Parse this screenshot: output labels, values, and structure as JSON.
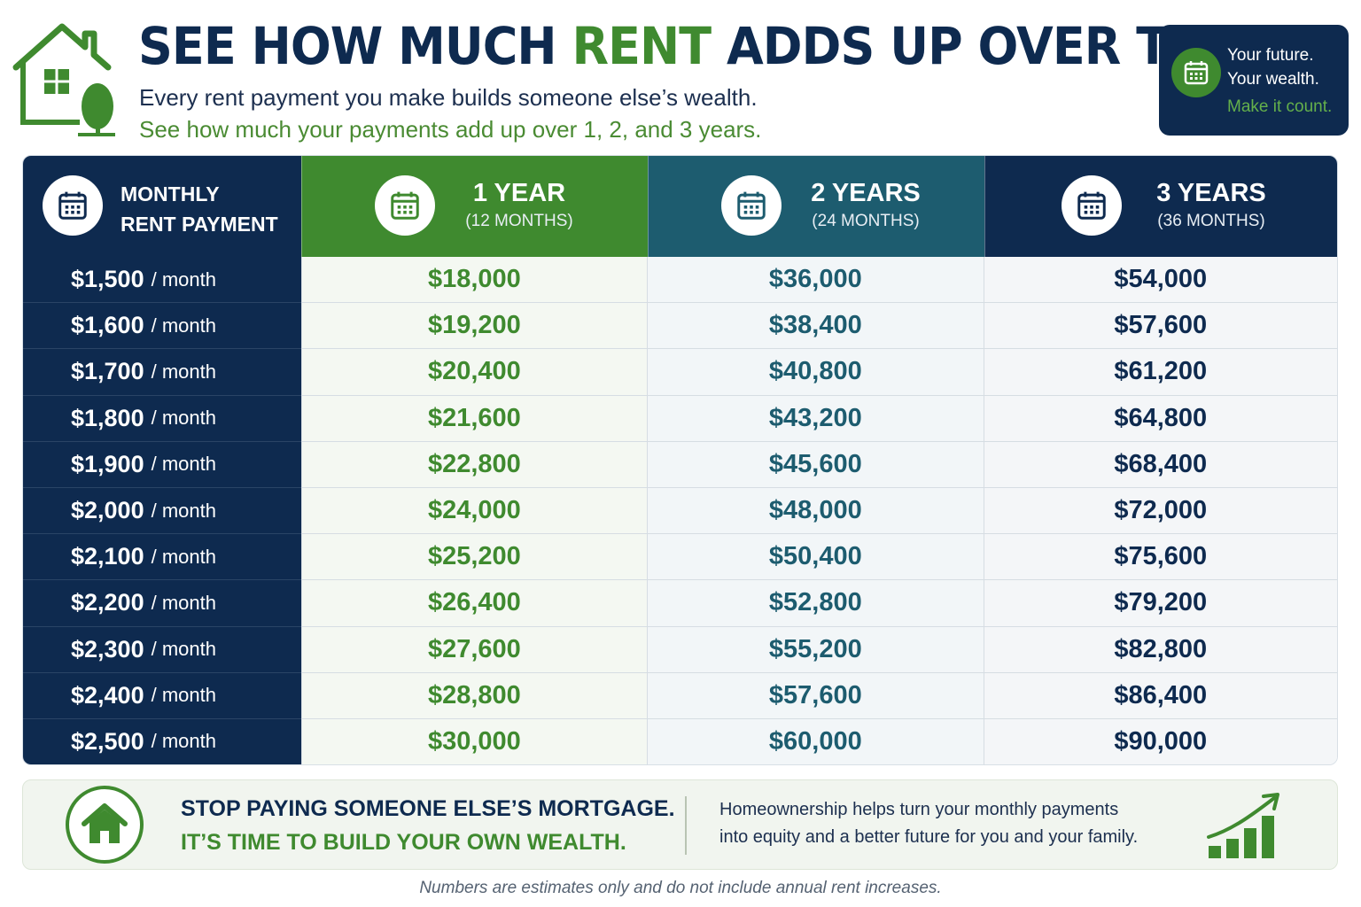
{
  "header": {
    "title_part1": "SEE HOW MUCH ",
    "title_accent": "RENT",
    "title_part2": " ADDS UP OVER TIME",
    "subtitle_line1": "Every rent payment you make builds someone else’s wealth.",
    "subtitle_line2": "See how much your payments add up over 1, 2, and 3 years."
  },
  "badge": {
    "line1": "Your future.",
    "line2": "Your wealth.",
    "line3": "Make it count."
  },
  "table": {
    "header": {
      "col0_line1": "MONTHLY",
      "col0_line2": "RENT PAYMENT",
      "col1_big": "1 YEAR",
      "col1_small": "(12 MONTHS)",
      "col2_big": "2 YEARS",
      "col2_small": "(24 MONTHS)",
      "col3_big": "3 YEARS",
      "col3_small": "(36 MONTHS)"
    },
    "per_label": "/ month",
    "rows": [
      {
        "rent": "$1,500",
        "y1": "$18,000",
        "y2": "$36,000",
        "y3": "$54,000"
      },
      {
        "rent": "$1,600",
        "y1": "$19,200",
        "y2": "$38,400",
        "y3": "$57,600"
      },
      {
        "rent": "$1,700",
        "y1": "$20,400",
        "y2": "$40,800",
        "y3": "$61,200"
      },
      {
        "rent": "$1,800",
        "y1": "$21,600",
        "y2": "$43,200",
        "y3": "$64,800"
      },
      {
        "rent": "$1,900",
        "y1": "$22,800",
        "y2": "$45,600",
        "y3": "$68,400"
      },
      {
        "rent": "$2,000",
        "y1": "$24,000",
        "y2": "$48,000",
        "y3": "$72,000"
      },
      {
        "rent": "$2,100",
        "y1": "$25,200",
        "y2": "$50,400",
        "y3": "$75,600"
      },
      {
        "rent": "$2,200",
        "y1": "$26,400",
        "y2": "$52,800",
        "y3": "$79,200"
      },
      {
        "rent": "$2,300",
        "y1": "$27,600",
        "y2": "$55,200",
        "y3": "$82,800"
      },
      {
        "rent": "$2,400",
        "y1": "$28,800",
        "y2": "$57,600",
        "y3": "$86,400"
      },
      {
        "rent": "$2,500",
        "y1": "$30,000",
        "y2": "$60,000",
        "y3": "$90,000"
      }
    ]
  },
  "banner": {
    "headline1": "STOP PAYING SOMEONE ELSE’S MORTGAGE.",
    "headline2": "IT’S TIME TO BUILD YOUR OWN WEALTH.",
    "text_line1": "Homeownership helps turn your monthly payments",
    "text_line2": "into equity and a better future for you and your family."
  },
  "disclaimer": "Numbers are estimates only and do not include annual rent increases.",
  "colors": {
    "navy": "#0e2a4f",
    "green": "#3f8a2f",
    "teal": "#1d5c6f"
  },
  "icons": {
    "logo": "house-tree-icon",
    "badge": "calendar-icon",
    "table_headers": "calendar-icon",
    "banner_left": "house-icon",
    "banner_right": "growth-chart-icon"
  }
}
